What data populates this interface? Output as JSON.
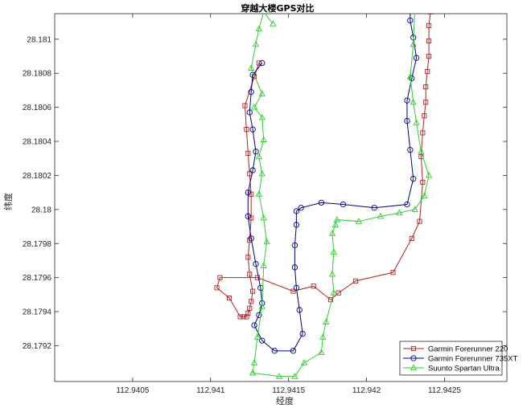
{
  "chart_data": {
    "type": "line",
    "title": "穿越大楼GPS对比",
    "xlabel": "经度",
    "ylabel": "纬度",
    "xlim": [
      112.94,
      112.9429
    ],
    "ylim": [
      28.17899,
      28.18115
    ],
    "xticks": [
      112.9405,
      112.941,
      112.9415,
      112.942,
      112.9425
    ],
    "xtick_labels": [
      "112.9405",
      "112.941",
      "112.9415",
      "112.942",
      "112.9425"
    ],
    "yticks": [
      28.1792,
      28.1794,
      28.1796,
      28.1798,
      28.18,
      28.1802,
      28.1804,
      28.1806,
      28.1808,
      28.181
    ],
    "ytick_labels": [
      "28.1792",
      "28.1794",
      "28.1796",
      "28.1798",
      "28.18",
      "28.1802",
      "28.1804",
      "28.1806",
      "28.1808",
      "28.181"
    ],
    "grid": false,
    "legend_position": "bottom-right",
    "series": [
      {
        "name": "Garmin Forerunner 220",
        "color": "#B22222",
        "marker": "square",
        "x": [
          112.94131,
          112.94128,
          112.94122,
          112.94123,
          112.94124,
          112.94125,
          112.94126,
          112.94126,
          112.94125,
          112.94124,
          112.94125,
          112.94127,
          112.94126,
          112.94125,
          112.94124,
          112.94123,
          112.94121,
          112.94119,
          112.94112,
          112.94104,
          112.94106,
          112.9413,
          112.94153,
          112.94166,
          112.94177,
          112.94182,
          112.94193,
          112.94217,
          112.94229,
          112.94234,
          112.94236,
          112.94235,
          112.94236,
          112.94237,
          112.94238,
          112.94238,
          112.94239,
          112.9424,
          112.9424,
          112.9424,
          112.94241,
          112.94241
        ],
        "y": [
          28.18086,
          28.18078,
          28.18061,
          28.18047,
          28.18033,
          28.18021,
          28.18009,
          28.17995,
          28.17982,
          28.17972,
          28.17962,
          28.17952,
          28.17946,
          28.17942,
          28.17939,
          28.17937,
          28.17937,
          28.17937,
          28.17948,
          28.17954,
          28.1796,
          28.1796,
          28.17952,
          28.17955,
          28.17947,
          28.17951,
          28.17958,
          28.17963,
          28.17983,
          28.17993,
          28.18016,
          28.18031,
          28.18045,
          28.18055,
          28.18063,
          28.18072,
          28.18081,
          28.1809,
          28.18099,
          28.18108,
          28.18116,
          28.18121
        ]
      },
      {
        "name": "Garmin Forerunner 735XT",
        "color": "#00008B",
        "marker": "circle",
        "x": [
          112.94133,
          112.94127,
          112.94126,
          112.94125,
          112.94127,
          112.94129,
          112.94127,
          112.94124,
          112.94124,
          112.94126,
          112.94129,
          112.94132,
          112.94133,
          112.94131,
          112.94128,
          112.94133,
          112.94141,
          112.94153,
          112.94159,
          112.94157,
          112.94155,
          112.94154,
          112.94154,
          112.94155,
          112.94155,
          112.94158,
          112.94171,
          112.94185,
          112.94205,
          112.94226,
          112.9423,
          112.94228,
          112.94226,
          112.94226,
          112.94229,
          112.94232,
          112.9423,
          112.94228,
          112.94228,
          112.94231
        ],
        "y": [
          28.18086,
          28.18079,
          28.18069,
          28.18057,
          28.18047,
          28.18034,
          28.18023,
          28.1801,
          28.17996,
          28.17983,
          28.17968,
          28.17954,
          28.17945,
          28.17938,
          28.17932,
          28.17923,
          28.17917,
          28.17917,
          28.17927,
          28.17941,
          28.17954,
          28.17966,
          28.17979,
          28.17991,
          28.17999,
          28.18001,
          28.18004,
          28.18003,
          28.18001,
          28.18003,
          28.18018,
          28.18035,
          28.18052,
          28.18064,
          28.18077,
          28.18089,
          28.18101,
          28.18111,
          28.18124,
          28.18129
        ]
      },
      {
        "name": "Suunto Spartan Ultra",
        "color": "#32CD32",
        "marker": "triangle",
        "x": [
          112.9414,
          112.94134,
          112.94131,
          112.94129,
          112.94126,
          112.94133,
          112.94128,
          112.94133,
          112.94134,
          112.94131,
          112.94133,
          112.94131,
          112.94134,
          112.94136,
          112.94134,
          112.94133,
          112.9413,
          112.94128,
          112.94127,
          112.94127,
          112.94144,
          112.94154,
          112.9416,
          112.94171,
          112.94172,
          112.94174,
          112.94179,
          112.94178,
          112.94179,
          112.94178,
          112.9418,
          112.94181,
          112.94195,
          112.94209,
          112.94221,
          112.94231,
          112.94237,
          112.9424,
          112.94235,
          112.94232,
          112.9423,
          112.94228,
          112.9423,
          112.94231
        ],
        "y": [
          28.18109,
          28.18116,
          28.18106,
          28.18097,
          28.18083,
          28.18068,
          28.1806,
          28.18054,
          28.18041,
          28.18031,
          28.18021,
          28.18009,
          28.17995,
          28.17981,
          28.17967,
          28.17943,
          28.17925,
          28.1791,
          28.17904,
          28.17904,
          28.17902,
          28.17902,
          28.1791,
          28.17916,
          28.17925,
          28.17934,
          28.17951,
          28.17962,
          28.17975,
          28.17986,
          28.17991,
          28.17994,
          28.17993,
          28.17996,
          28.17998,
          28.18,
          28.18008,
          28.1802,
          28.18034,
          28.18051,
          28.18063,
          28.18078,
          28.18097,
          28.18119
        ]
      }
    ]
  }
}
